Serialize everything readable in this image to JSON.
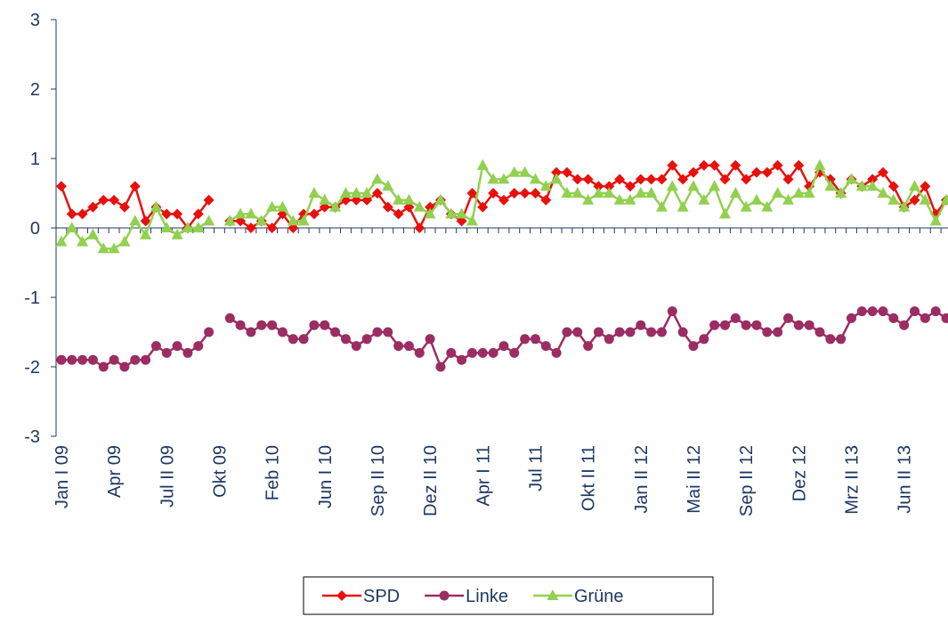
{
  "chart_data": {
    "type": "line",
    "categories": [
      "Jan I 09",
      null,
      null,
      null,
      null,
      "Apr 09",
      null,
      null,
      null,
      null,
      "Jul II 09",
      null,
      null,
      null,
      null,
      "Okt 09",
      null,
      null,
      null,
      null,
      "Feb 10",
      null,
      null,
      null,
      null,
      "Jun I 10",
      null,
      null,
      null,
      null,
      "Sep II 10",
      null,
      null,
      null,
      null,
      "Dez II 10",
      null,
      null,
      null,
      null,
      "Apr I 11",
      null,
      null,
      null,
      null,
      "Jul 11",
      null,
      null,
      null,
      null,
      "Okt II 11",
      null,
      null,
      null,
      null,
      "Jan II 12",
      null,
      null,
      null,
      null,
      "Mai II 12",
      null,
      null,
      null,
      null,
      "Sep II 12",
      null,
      null,
      null,
      null,
      "Dez 12",
      null,
      null,
      null,
      null,
      "Mrz II 13",
      null,
      null,
      null,
      null,
      "Jun II 13",
      null,
      null,
      null,
      null
    ],
    "series": [
      {
        "name": "SPD",
        "color": "#e8100c",
        "marker": "diamond",
        "values": [
          0.6,
          0.2,
          0.2,
          0.3,
          0.4,
          0.4,
          0.3,
          0.6,
          0.1,
          0.3,
          0.2,
          0.2,
          0.0,
          0.2,
          0.4,
          null,
          0.1,
          0.1,
          0.0,
          0.1,
          0.0,
          0.2,
          0.0,
          0.2,
          0.2,
          0.3,
          0.3,
          0.4,
          0.4,
          0.4,
          0.5,
          0.3,
          0.2,
          0.3,
          0.0,
          0.3,
          0.4,
          0.2,
          0.1,
          0.5,
          0.3,
          0.5,
          0.4,
          0.5,
          0.5,
          0.5,
          0.4,
          0.8,
          0.8,
          0.7,
          0.7,
          0.6,
          0.6,
          0.7,
          0.6,
          0.7,
          0.7,
          0.7,
          0.9,
          0.7,
          0.8,
          0.9,
          0.9,
          0.7,
          0.9,
          0.7,
          0.8,
          0.8,
          0.9,
          0.7,
          0.9,
          0.6,
          0.8,
          0.7,
          0.5,
          0.7,
          0.6,
          0.7,
          0.8,
          0.6,
          0.3,
          0.4,
          0.6,
          0.2,
          0.4
        ]
      },
      {
        "name": "Linke",
        "color": "#9b2d62",
        "marker": "circle",
        "values": [
          -1.9,
          -1.9,
          -1.9,
          -1.9,
          -2.0,
          -1.9,
          -2.0,
          -1.9,
          -1.9,
          -1.7,
          -1.8,
          -1.7,
          -1.8,
          -1.7,
          -1.5,
          null,
          -1.3,
          -1.4,
          -1.5,
          -1.4,
          -1.4,
          -1.5,
          -1.6,
          -1.6,
          -1.4,
          -1.4,
          -1.5,
          -1.6,
          -1.7,
          -1.6,
          -1.5,
          -1.5,
          -1.7,
          -1.7,
          -1.8,
          -1.6,
          -2.0,
          -1.8,
          -1.9,
          -1.8,
          -1.8,
          -1.8,
          -1.7,
          -1.8,
          -1.6,
          -1.6,
          -1.7,
          -1.8,
          -1.5,
          -1.5,
          -1.7,
          -1.5,
          -1.6,
          -1.5,
          -1.5,
          -1.4,
          -1.5,
          -1.5,
          -1.2,
          -1.5,
          -1.7,
          -1.6,
          -1.4,
          -1.4,
          -1.3,
          -1.4,
          -1.4,
          -1.5,
          -1.5,
          -1.3,
          -1.4,
          -1.4,
          -1.5,
          -1.6,
          -1.6,
          -1.3,
          -1.2,
          -1.2,
          -1.2,
          -1.3,
          -1.4,
          -1.2,
          -1.3,
          -1.2,
          -1.3
        ]
      },
      {
        "name": "Grüne",
        "color": "#92d050",
        "marker": "triangle",
        "values": [
          -0.2,
          0.0,
          -0.2,
          -0.1,
          -0.3,
          -0.3,
          -0.2,
          0.1,
          -0.1,
          0.3,
          0.0,
          -0.1,
          0.0,
          0.0,
          0.1,
          null,
          0.1,
          0.2,
          0.2,
          0.1,
          0.3,
          0.3,
          0.1,
          0.1,
          0.5,
          0.4,
          0.3,
          0.5,
          0.5,
          0.5,
          0.7,
          0.6,
          0.4,
          0.4,
          0.3,
          0.2,
          0.4,
          0.2,
          0.2,
          0.1,
          0.9,
          0.7,
          0.7,
          0.8,
          0.8,
          0.7,
          0.6,
          0.7,
          0.5,
          0.5,
          0.4,
          0.5,
          0.5,
          0.4,
          0.4,
          0.5,
          0.5,
          0.3,
          0.6,
          0.3,
          0.6,
          0.4,
          0.6,
          0.2,
          0.5,
          0.3,
          0.4,
          0.3,
          0.5,
          0.4,
          0.5,
          0.5,
          0.9,
          0.6,
          0.5,
          0.7,
          0.6,
          0.6,
          0.5,
          0.4,
          0.3,
          0.6,
          0.4,
          0.1,
          0.4
        ]
      }
    ],
    "ylim": [
      -3,
      3
    ],
    "yticks": [
      -3,
      -2,
      -1,
      0,
      1,
      2,
      3
    ],
    "legend": "bottom"
  }
}
